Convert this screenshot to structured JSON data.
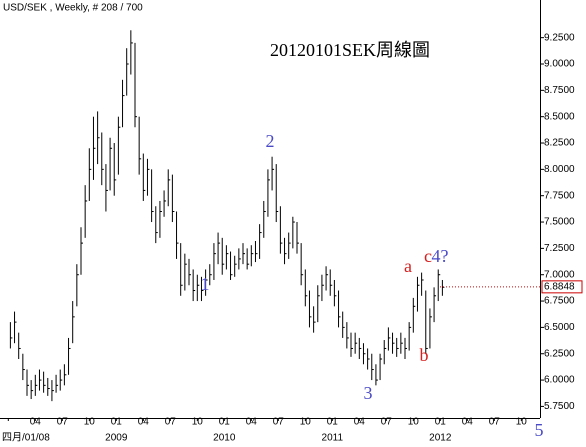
{
  "chart_data": {
    "type": "ohlc",
    "title": "USD/SEK , Weekly, # 208 / 700",
    "subtitle": "20120101SEK周線圖",
    "bar_color": "#000000",
    "xlim": [
      -4,
      256
    ],
    "ylim": [
      5.64,
      9.56
    ],
    "xticks": [
      {
        "value": 0,
        "label": "四月/01/08"
      },
      {
        "value": 13,
        "label": "04"
      },
      {
        "value": 26,
        "label": "07"
      },
      {
        "value": 39,
        "label": "10"
      },
      {
        "value": 52,
        "label": "01"
      },
      {
        "value": 65,
        "label": "04"
      },
      {
        "value": 78,
        "label": "07"
      },
      {
        "value": 91,
        "label": "10"
      },
      {
        "value": 104,
        "label": "01"
      },
      {
        "value": 117,
        "label": "04"
      },
      {
        "value": 130,
        "label": "07"
      },
      {
        "value": 143,
        "label": "10"
      },
      {
        "value": 156,
        "label": "01"
      },
      {
        "value": 169,
        "label": "04"
      },
      {
        "value": 182,
        "label": "07"
      },
      {
        "value": 195,
        "label": "10"
      },
      {
        "value": 208,
        "label": "01"
      },
      {
        "value": 221,
        "label": "04"
      },
      {
        "value": 234,
        "label": "07"
      },
      {
        "value": 247,
        "label": "10"
      }
    ],
    "year_ticks": [
      {
        "value": 52,
        "label": "2009"
      },
      {
        "value": 104,
        "label": "2010"
      },
      {
        "value": 156,
        "label": "2011"
      },
      {
        "value": 208,
        "label": "2012"
      }
    ],
    "yticks": [
      {
        "value": 5.75,
        "label": "5.7500"
      },
      {
        "value": 6,
        "label": "6.0000"
      },
      {
        "value": 6.25,
        "label": "6.2500"
      },
      {
        "value": 6.5,
        "label": "6.5000"
      },
      {
        "value": 6.75,
        "label": "6.7500"
      },
      {
        "value": 7,
        "label": "7.0000"
      },
      {
        "value": 7.25,
        "label": "7.2500"
      },
      {
        "value": 7.5,
        "label": "7.5000"
      },
      {
        "value": 7.75,
        "label": "7.7500"
      },
      {
        "value": 8,
        "label": "8.0000"
      },
      {
        "value": 8.25,
        "label": "8.2500"
      },
      {
        "value": 8.5,
        "label": "8.5000"
      },
      {
        "value": 8.75,
        "label": "8.7500"
      },
      {
        "value": 9,
        "label": "9.0000"
      },
      {
        "value": 9.25,
        "label": "9.2500"
      }
    ],
    "last_price": 6.8848,
    "last_price_color": "#cc0000",
    "annotations": [
      {
        "text": "1",
        "color": "#4a4ac8"
      },
      {
        "text": "2",
        "color": "#4a4ac8"
      },
      {
        "text": "3",
        "color": "#4a4ac8"
      },
      {
        "text": "a",
        "color": "#d42020"
      },
      {
        "text": "b",
        "color": "#d42020"
      },
      {
        "text": "c",
        "color": "#d42020"
      },
      {
        "text": "4?",
        "color": "#4a4ac8"
      },
      {
        "text": "5",
        "color": "#4a4ac8"
      }
    ],
    "x": [
      1,
      3,
      5,
      7,
      9,
      11,
      13,
      15,
      17,
      19,
      21,
      23,
      25,
      27,
      29,
      31,
      33,
      35,
      37,
      39,
      41,
      43,
      45,
      47,
      49,
      51,
      53,
      55,
      57,
      59,
      61,
      63,
      65,
      67,
      69,
      71,
      73,
      75,
      77,
      79,
      81,
      83,
      85,
      87,
      89,
      91,
      93,
      95,
      97,
      99,
      101,
      103,
      105,
      107,
      109,
      111,
      113,
      115,
      117,
      119,
      121,
      123,
      125,
      127,
      129,
      131,
      133,
      135,
      137,
      139,
      141,
      143,
      145,
      147,
      149,
      151,
      153,
      155,
      157,
      159,
      161,
      163,
      165,
      167,
      169,
      171,
      173,
      175,
      177,
      179,
      181,
      183,
      185,
      187,
      189,
      191,
      193,
      195,
      197,
      199,
      201,
      203,
      205,
      207,
      209
    ],
    "high": [
      6.55,
      6.65,
      6.45,
      6.25,
      6.1,
      6.0,
      6.05,
      6.1,
      6.08,
      6.02,
      6.0,
      6.05,
      6.1,
      6.15,
      6.4,
      6.75,
      7.1,
      7.45,
      7.85,
      8.2,
      8.5,
      8.55,
      8.35,
      8.05,
      8.3,
      8.25,
      8.5,
      8.85,
      9.15,
      9.32,
      9.2,
      8.5,
      8.15,
      8.1,
      8.0,
      7.65,
      7.7,
      7.8,
      8.0,
      7.95,
      7.6,
      7.3,
      7.2,
      7.15,
      7.05,
      7.0,
      6.98,
      7.05,
      7.1,
      7.3,
      7.4,
      7.35,
      7.28,
      7.22,
      7.18,
      7.25,
      7.3,
      7.25,
      7.28,
      7.32,
      7.48,
      7.7,
      8.0,
      8.12,
      8.05,
      7.65,
      7.35,
      7.4,
      7.55,
      7.5,
      7.3,
      7.05,
      6.85,
      6.7,
      6.9,
      7.0,
      7.08,
      7.05,
      6.95,
      6.85,
      6.65,
      6.55,
      6.45,
      6.45,
      6.4,
      6.35,
      6.3,
      6.25,
      6.15,
      6.25,
      6.38,
      6.5,
      6.45,
      6.4,
      6.45,
      6.4,
      6.55,
      6.78,
      6.98,
      7.02,
      6.85,
      6.68,
      6.88,
      7.05,
      6.95
    ],
    "low": [
      6.3,
      6.35,
      6.2,
      6.0,
      5.85,
      5.82,
      5.85,
      5.9,
      5.88,
      5.85,
      5.8,
      5.88,
      5.9,
      5.95,
      6.05,
      6.35,
      6.7,
      7.0,
      7.35,
      7.7,
      7.9,
      8.05,
      7.85,
      7.6,
      7.8,
      7.75,
      7.95,
      8.4,
      8.7,
      8.9,
      8.4,
      7.95,
      7.7,
      7.75,
      7.5,
      7.3,
      7.35,
      7.55,
      7.65,
      7.5,
      7.15,
      6.8,
      6.85,
      6.9,
      6.75,
      6.75,
      6.75,
      6.8,
      6.9,
      6.95,
      7.1,
      7.0,
      7.05,
      6.95,
      6.98,
      7.05,
      7.1,
      7.05,
      7.08,
      7.12,
      7.15,
      7.35,
      7.55,
      7.8,
      7.5,
      7.2,
      7.1,
      7.15,
      7.25,
      7.2,
      6.9,
      6.7,
      6.5,
      6.45,
      6.55,
      6.75,
      6.85,
      6.8,
      6.7,
      6.5,
      6.4,
      6.3,
      6.22,
      6.25,
      6.2,
      6.15,
      6.1,
      6.0,
      5.95,
      6.0,
      6.15,
      6.28,
      6.25,
      6.22,
      6.25,
      6.2,
      6.28,
      6.45,
      6.65,
      6.8,
      6.25,
      6.3,
      6.55,
      6.75,
      6.8
    ],
    "close": [
      6.4,
      6.55,
      6.3,
      6.1,
      5.95,
      5.9,
      5.95,
      6.0,
      5.95,
      5.92,
      5.9,
      5.95,
      6.0,
      6.05,
      6.3,
      6.6,
      7.0,
      7.3,
      7.7,
      8.0,
      8.2,
      8.3,
      8.0,
      7.8,
      8.2,
      7.9,
      8.4,
      8.7,
      9.0,
      9.2,
      8.5,
      8.1,
      7.8,
      8.0,
      7.6,
      7.4,
      7.6,
      7.7,
      7.9,
      7.6,
      7.3,
      6.9,
      7.1,
      7.0,
      6.85,
      6.9,
      6.85,
      6.95,
      7.0,
      7.2,
      7.3,
      7.1,
      7.2,
      7.0,
      7.1,
      7.15,
      7.2,
      7.1,
      7.2,
      7.2,
      7.4,
      7.6,
      7.9,
      8.0,
      7.6,
      7.3,
      7.2,
      7.3,
      7.5,
      7.3,
      7.0,
      6.8,
      6.6,
      6.55,
      6.8,
      6.9,
      7.0,
      6.9,
      6.8,
      6.6,
      6.5,
      6.4,
      6.3,
      6.35,
      6.3,
      6.25,
      6.2,
      6.1,
      6.0,
      6.2,
      6.3,
      6.4,
      6.35,
      6.3,
      6.35,
      6.3,
      6.5,
      6.7,
      6.9,
      6.95,
      6.3,
      6.6,
      6.8,
      7.0,
      6.88
    ]
  }
}
